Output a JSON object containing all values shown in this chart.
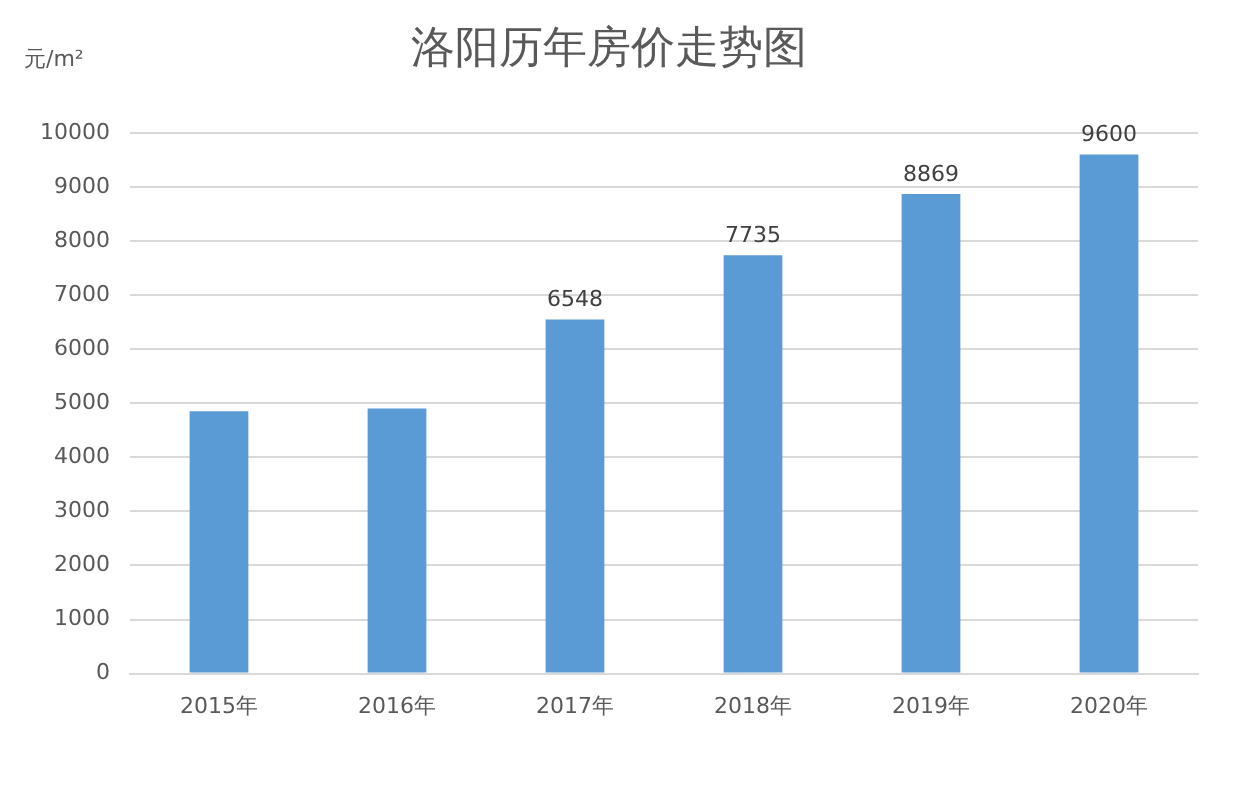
{
  "chart_data": {
    "type": "bar",
    "title": "洛阳历年房价走势图",
    "ylabel": "元/m²",
    "categories": [
      "2015年",
      "2016年",
      "2017年",
      "2018年",
      "2019年",
      "2020年"
    ],
    "values": [
      4850,
      4900,
      6548,
      7735,
      8869,
      9600
    ],
    "value_labels": [
      null,
      null,
      "6548",
      "7735",
      "8869",
      "9600"
    ],
    "color": "#5b9bd5",
    "ylim": [
      0,
      10000
    ],
    "yticks": [
      0,
      1000,
      2000,
      3000,
      4000,
      5000,
      6000,
      7000,
      8000,
      9000,
      10000
    ],
    "grid": "y",
    "legend": false
  }
}
